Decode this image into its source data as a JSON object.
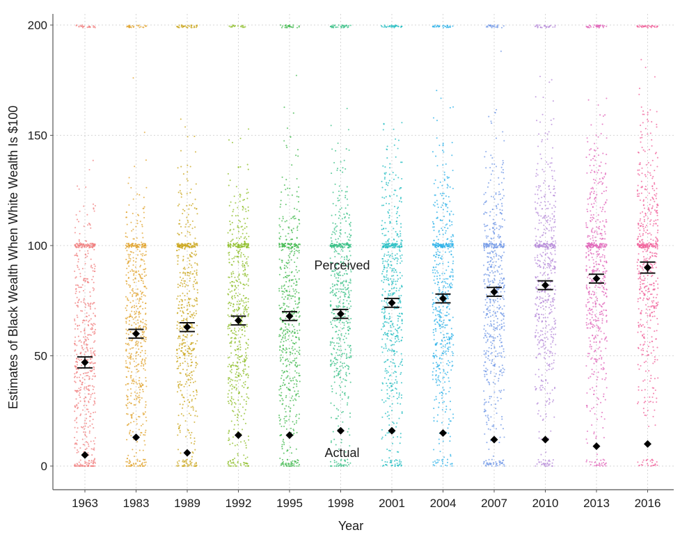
{
  "chart_data": {
    "type": "scatter",
    "title": "",
    "xlabel": "Year",
    "ylabel": "Estimates of Black Wealth When White Wealth Is $100",
    "ylim": [
      0,
      200
    ],
    "yticks": [
      0,
      50,
      100,
      150,
      200
    ],
    "grid": true,
    "categories": [
      "1963",
      "1983",
      "1989",
      "1992",
      "1995",
      "1998",
      "2001",
      "2004",
      "2007",
      "2010",
      "2013",
      "2016"
    ],
    "series": [
      {
        "name": "Perceived",
        "means": [
          47,
          60,
          63,
          66,
          68,
          69,
          74,
          76,
          79,
          82,
          85,
          90
        ],
        "ci_half_width": [
          2.5,
          2.0,
          2.0,
          2.0,
          2.0,
          2.0,
          2.0,
          2.0,
          2.0,
          2.0,
          2.0,
          2.5
        ]
      },
      {
        "name": "Actual",
        "values": [
          5,
          13,
          6,
          14,
          14,
          16,
          16,
          15,
          12,
          12,
          9,
          10
        ]
      }
    ],
    "annotations": [
      {
        "text": "Perceived",
        "x": "1998",
        "y": 91
      },
      {
        "text": "Actual",
        "x": "1998",
        "y": 6
      }
    ],
    "point_colors": [
      "#f07e7e",
      "#e0a22a",
      "#c9a418",
      "#8bbc23",
      "#3fb84c",
      "#36bf84",
      "#1fbcc0",
      "#2ab0e8",
      "#6e95e6",
      "#b58ad8",
      "#e063b8",
      "#f0609a"
    ]
  }
}
